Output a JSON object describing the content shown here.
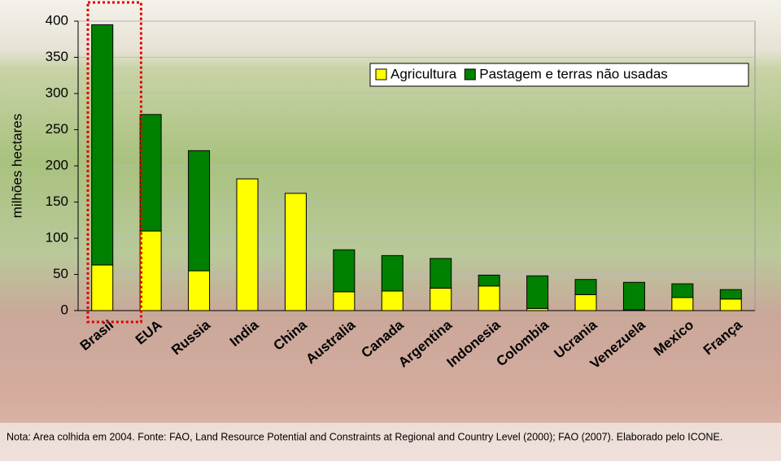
{
  "chart_data": {
    "type": "stacked_bar",
    "y_label": "milhões hectares",
    "categories": [
      "Brasil",
      "EUA",
      "Russia",
      "India",
      "China",
      "Australia",
      "Canada",
      "Argentina",
      "Indonesia",
      "Colombia",
      "Ucrania",
      "Venezuela",
      "Mexico",
      "França"
    ],
    "series": [
      {
        "name": "Agricultura",
        "color": "#ffff00",
        "values": [
          63,
          110,
          55,
          182,
          162,
          26,
          27,
          31,
          34,
          3,
          22,
          1,
          18,
          16
        ]
      },
      {
        "name": "Pastagem e terras não usadas",
        "color": "#008000",
        "values": [
          332,
          161,
          166,
          0,
          0,
          58,
          49,
          41,
          15,
          45,
          21,
          38,
          19,
          13
        ]
      }
    ],
    "ylim": [
      0,
      400
    ],
    "yticks": [
      0,
      50,
      100,
      150,
      200,
      250,
      300,
      350,
      400
    ],
    "grid": true,
    "legend": "top-right",
    "note": "Nota: Area colhida em 2004. Fonte: FAO, Land Resource Potential and Constraints at Regional and Country Level (2000); FAO (2007). Elaborado pelo ICONE."
  }
}
